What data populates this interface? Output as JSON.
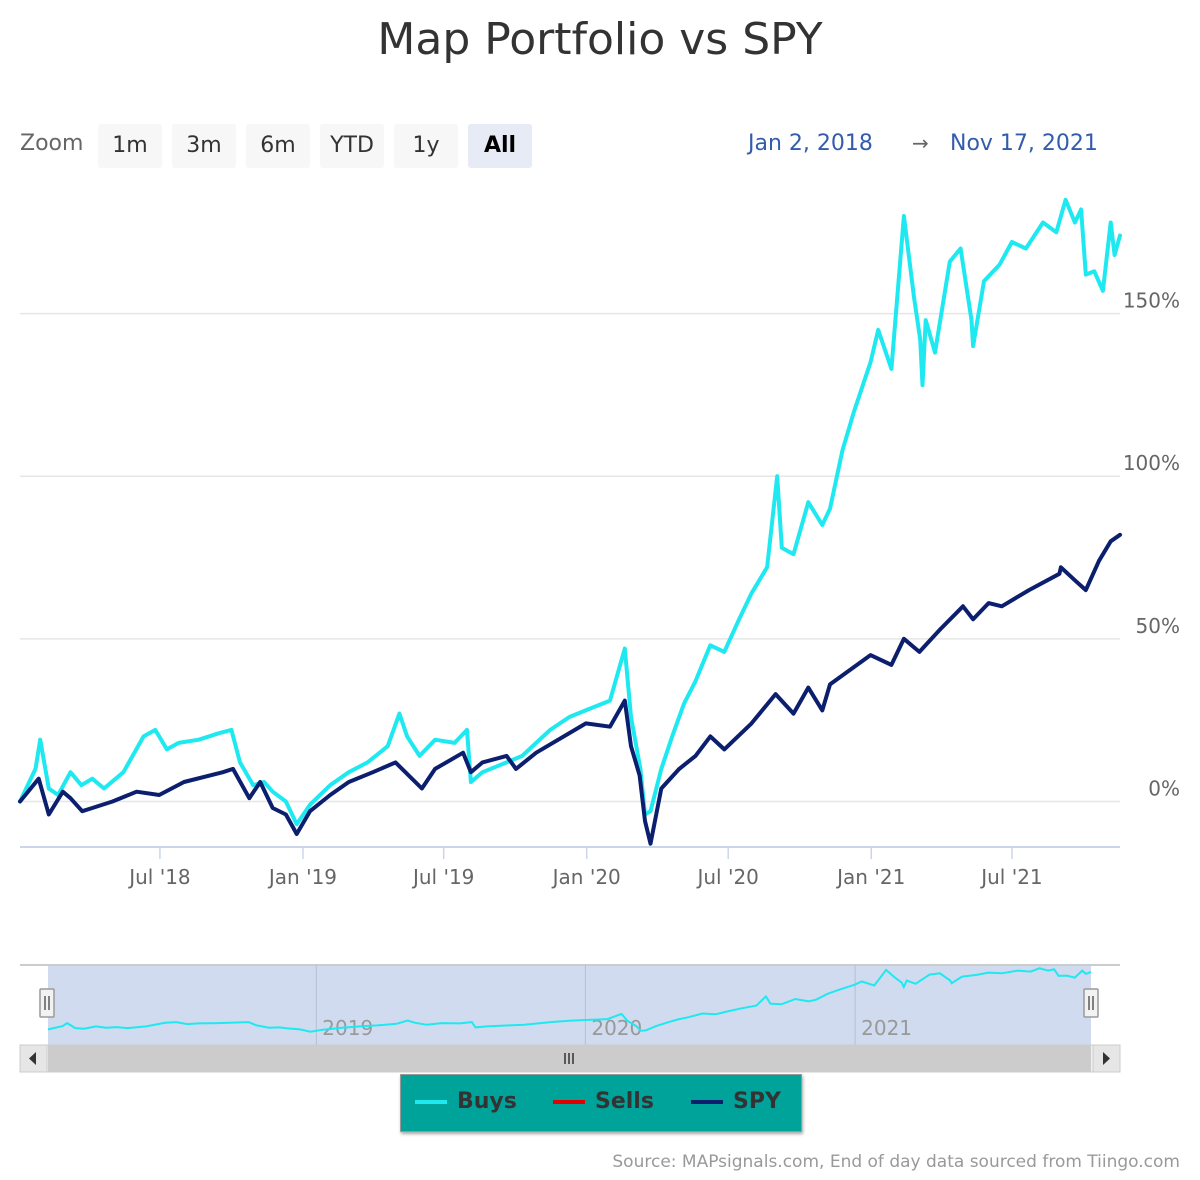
{
  "title": "Map Portfolio vs SPY",
  "zoom": {
    "label": "Zoom",
    "buttons": [
      "1m",
      "3m",
      "6m",
      "YTD",
      "1y",
      "All"
    ],
    "active": "All"
  },
  "range": {
    "from": "Jan 2, 2018",
    "arrow": "→",
    "to": "Nov 17, 2021"
  },
  "legend": [
    {
      "name": "Buys",
      "color": "#1ee8f0"
    },
    {
      "name": "Sells",
      "color": "#e00000"
    },
    {
      "name": "SPY",
      "color": "#0b1f6e"
    }
  ],
  "credits": "Source: MAPsignals.com, End of day data sourced from Tiingo.com",
  "navigator": {
    "labels": [
      "2019",
      "2020",
      "2021"
    ]
  },
  "chart_data": {
    "type": "line",
    "title": "Map Portfolio vs SPY",
    "x_range": [
      "2018-01-02",
      "2021-11-17"
    ],
    "ylim": [
      -14,
      188
    ],
    "y_ticks": [
      0,
      50,
      100,
      150
    ],
    "y_tick_labels": [
      "0%",
      "50%",
      "100%",
      "150%"
    ],
    "x_ticks": [
      {
        "date": "2018-07-01",
        "label": "Jul '18"
      },
      {
        "date": "2019-01-01",
        "label": "Jan '19"
      },
      {
        "date": "2019-07-01",
        "label": "Jul '19"
      },
      {
        "date": "2020-01-01",
        "label": "Jan '20"
      },
      {
        "date": "2020-07-01",
        "label": "Jul '20"
      },
      {
        "date": "2021-01-01",
        "label": "Jan '21"
      },
      {
        "date": "2021-07-01",
        "label": "Jul '21"
      }
    ],
    "series": [
      {
        "name": "Buys",
        "color": "#1ee8f0",
        "points": [
          [
            "2018-01-02",
            0
          ],
          [
            "2018-01-22",
            10
          ],
          [
            "2018-01-28",
            19
          ],
          [
            "2018-02-08",
            4
          ],
          [
            "2018-02-20",
            2
          ],
          [
            "2018-03-08",
            9
          ],
          [
            "2018-03-22",
            5
          ],
          [
            "2018-04-05",
            7
          ],
          [
            "2018-04-20",
            4
          ],
          [
            "2018-05-15",
            9
          ],
          [
            "2018-06-10",
            20
          ],
          [
            "2018-06-25",
            22
          ],
          [
            "2018-07-10",
            16
          ],
          [
            "2018-07-25",
            18
          ],
          [
            "2018-08-20",
            19
          ],
          [
            "2018-09-15",
            21
          ],
          [
            "2018-10-01",
            22
          ],
          [
            "2018-10-12",
            12
          ],
          [
            "2018-10-29",
            5
          ],
          [
            "2018-11-12",
            6
          ],
          [
            "2018-11-23",
            3
          ],
          [
            "2018-12-10",
            0
          ],
          [
            "2018-12-24",
            -7
          ],
          [
            "2019-01-10",
            -1
          ],
          [
            "2019-02-05",
            5
          ],
          [
            "2019-03-01",
            9
          ],
          [
            "2019-03-25",
            12
          ],
          [
            "2019-04-20",
            17
          ],
          [
            "2019-05-05",
            27
          ],
          [
            "2019-05-15",
            20
          ],
          [
            "2019-05-31",
            14
          ],
          [
            "2019-06-20",
            19
          ],
          [
            "2019-07-15",
            18
          ],
          [
            "2019-07-31",
            22
          ],
          [
            "2019-08-05",
            6
          ],
          [
            "2019-08-20",
            9
          ],
          [
            "2019-09-20",
            12
          ],
          [
            "2019-10-10",
            14
          ],
          [
            "2019-11-15",
            22
          ],
          [
            "2019-12-10",
            26
          ],
          [
            "2020-01-10",
            29
          ],
          [
            "2020-01-31",
            31
          ],
          [
            "2020-02-19",
            47
          ],
          [
            "2020-02-27",
            26
          ],
          [
            "2020-03-10",
            10
          ],
          [
            "2020-03-16",
            -4
          ],
          [
            "2020-03-23",
            -3
          ],
          [
            "2020-04-06",
            10
          ],
          [
            "2020-04-20",
            20
          ],
          [
            "2020-05-05",
            30
          ],
          [
            "2020-05-20",
            37
          ],
          [
            "2020-06-08",
            48
          ],
          [
            "2020-06-26",
            46
          ],
          [
            "2020-07-15",
            56
          ],
          [
            "2020-07-31",
            64
          ],
          [
            "2020-08-20",
            72
          ],
          [
            "2020-09-02",
            100
          ],
          [
            "2020-09-08",
            78
          ],
          [
            "2020-09-23",
            76
          ],
          [
            "2020-10-12",
            92
          ],
          [
            "2020-10-30",
            85
          ],
          [
            "2020-11-09",
            90
          ],
          [
            "2020-11-25",
            108
          ],
          [
            "2020-12-10",
            120
          ],
          [
            "2020-12-31",
            135
          ],
          [
            "2021-01-10",
            145
          ],
          [
            "2021-01-27",
            133
          ],
          [
            "2021-02-12",
            180
          ],
          [
            "2021-02-25",
            155
          ],
          [
            "2021-03-05",
            142
          ],
          [
            "2021-03-08",
            128
          ],
          [
            "2021-03-12",
            148
          ],
          [
            "2021-03-24",
            138
          ],
          [
            "2021-04-12",
            166
          ],
          [
            "2021-04-26",
            170
          ],
          [
            "2021-05-10",
            148
          ],
          [
            "2021-05-12",
            140
          ],
          [
            "2021-05-26",
            160
          ],
          [
            "2021-06-15",
            165
          ],
          [
            "2021-07-01",
            172
          ],
          [
            "2021-07-19",
            170
          ],
          [
            "2021-08-10",
            178
          ],
          [
            "2021-08-27",
            175
          ],
          [
            "2021-09-08",
            185
          ],
          [
            "2021-09-20",
            178
          ],
          [
            "2021-09-28",
            182
          ],
          [
            "2021-10-04",
            162
          ],
          [
            "2021-10-15",
            163
          ],
          [
            "2021-10-26",
            157
          ],
          [
            "2021-11-05",
            178
          ],
          [
            "2021-11-10",
            168
          ],
          [
            "2021-11-17",
            174
          ]
        ]
      },
      {
        "name": "Sells",
        "color": "#e00000",
        "points": []
      },
      {
        "name": "SPY",
        "color": "#0b1f6e",
        "points": [
          [
            "2018-01-02",
            0
          ],
          [
            "2018-01-26",
            7
          ],
          [
            "2018-02-08",
            -4
          ],
          [
            "2018-02-26",
            3
          ],
          [
            "2018-03-08",
            1
          ],
          [
            "2018-03-23",
            -3
          ],
          [
            "2018-04-05",
            -2
          ],
          [
            "2018-05-01",
            0
          ],
          [
            "2018-06-01",
            3
          ],
          [
            "2018-06-30",
            2
          ],
          [
            "2018-08-01",
            6
          ],
          [
            "2018-09-20",
            9
          ],
          [
            "2018-10-03",
            10
          ],
          [
            "2018-10-24",
            1
          ],
          [
            "2018-11-07",
            6
          ],
          [
            "2018-11-23",
            -2
          ],
          [
            "2018-12-10",
            -4
          ],
          [
            "2018-12-24",
            -10
          ],
          [
            "2019-01-10",
            -3
          ],
          [
            "2019-02-05",
            2
          ],
          [
            "2019-03-01",
            6
          ],
          [
            "2019-04-01",
            9
          ],
          [
            "2019-04-30",
            12
          ],
          [
            "2019-06-03",
            4
          ],
          [
            "2019-06-20",
            10
          ],
          [
            "2019-07-26",
            15
          ],
          [
            "2019-08-05",
            9
          ],
          [
            "2019-08-20",
            12
          ],
          [
            "2019-09-20",
            14
          ],
          [
            "2019-10-02",
            10
          ],
          [
            "2019-10-28",
            15
          ],
          [
            "2019-12-31",
            24
          ],
          [
            "2020-01-31",
            23
          ],
          [
            "2020-02-19",
            31
          ],
          [
            "2020-02-27",
            17
          ],
          [
            "2020-03-09",
            8
          ],
          [
            "2020-03-16",
            -6
          ],
          [
            "2020-03-23",
            -13
          ],
          [
            "2020-04-06",
            4
          ],
          [
            "2020-04-29",
            10
          ],
          [
            "2020-05-20",
            14
          ],
          [
            "2020-06-08",
            20
          ],
          [
            "2020-06-26",
            16
          ],
          [
            "2020-07-31",
            24
          ],
          [
            "2020-08-31",
            33
          ],
          [
            "2020-09-23",
            27
          ],
          [
            "2020-10-12",
            35
          ],
          [
            "2020-10-30",
            28
          ],
          [
            "2020-11-09",
            36
          ],
          [
            "2020-12-31",
            45
          ],
          [
            "2021-01-27",
            42
          ],
          [
            "2021-02-12",
            50
          ],
          [
            "2021-03-04",
            46
          ],
          [
            "2021-03-31",
            53
          ],
          [
            "2021-04-29",
            60
          ],
          [
            "2021-05-12",
            56
          ],
          [
            "2021-06-01",
            61
          ],
          [
            "2021-06-18",
            60
          ],
          [
            "2021-07-23",
            65
          ],
          [
            "2021-08-31",
            70
          ],
          [
            "2021-09-02",
            72
          ],
          [
            "2021-09-20",
            68
          ],
          [
            "2021-10-04",
            65
          ],
          [
            "2021-10-21",
            74
          ],
          [
            "2021-11-05",
            80
          ],
          [
            "2021-11-17",
            82
          ]
        ]
      }
    ]
  }
}
